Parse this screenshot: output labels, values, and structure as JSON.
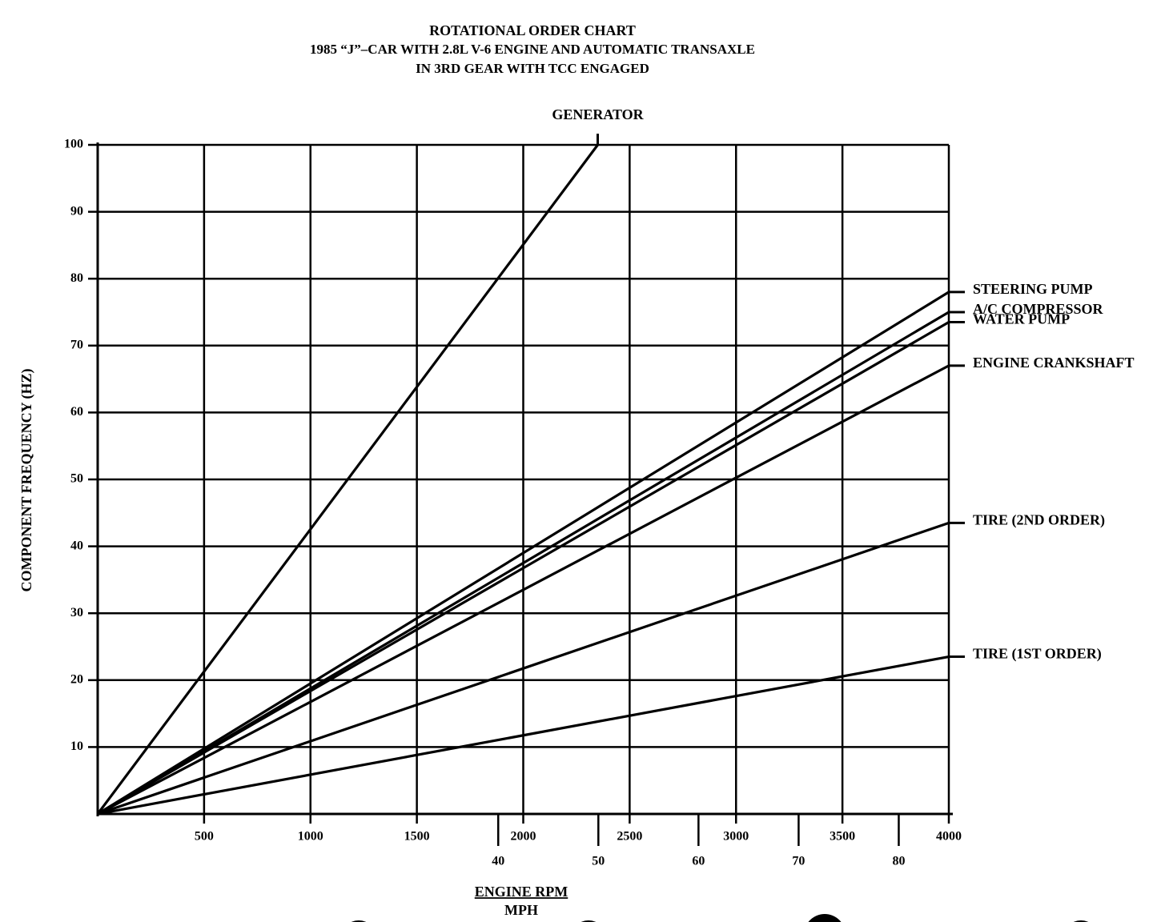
{
  "chart_data": {
    "type": "line",
    "title": "ROTATIONAL ORDER CHART",
    "subtitle": [
      "1985 “J”–CAR WITH 2.8L V-6 ENGINE AND AUTOMATIC TRANSAXLE",
      "IN 3RD GEAR WITH TCC ENGAGED"
    ],
    "ylabel": "COMPONENT FREQUENCY (HZ)",
    "xlabel": "ENGINE RPM",
    "x2label": "MPH",
    "xlim": [
      0,
      4000
    ],
    "xticks": [
      500,
      1000,
      1500,
      2000,
      2500,
      3000,
      3500,
      4000
    ],
    "x2lim": [
      0,
      85
    ],
    "x2ticks": [
      40,
      50,
      60,
      70,
      80
    ],
    "ylim": [
      0,
      100
    ],
    "yticks": [
      10,
      20,
      30,
      40,
      50,
      60,
      70,
      80,
      90,
      100
    ],
    "grid": true,
    "series": [
      {
        "name": "GENERATOR",
        "color": "#000000",
        "x": [
          0,
          2350
        ],
        "values": [
          0,
          100
        ]
      },
      {
        "name": "STEERING PUMP",
        "color": "#000000",
        "x": [
          0,
          4000
        ],
        "values": [
          0,
          78
        ]
      },
      {
        "name": "A/C COMPRESSOR",
        "color": "#000000",
        "x": [
          0,
          4000
        ],
        "values": [
          0,
          75
        ]
      },
      {
        "name": "WATER PUMP",
        "color": "#000000",
        "x": [
          0,
          4000
        ],
        "values": [
          0,
          73.5
        ]
      },
      {
        "name": "ENGINE CRANKSHAFT",
        "color": "#000000",
        "x": [
          0,
          4000
        ],
        "values": [
          0,
          67
        ]
      },
      {
        "name": "TIRE (2ND ORDER)",
        "color": "#000000",
        "x": [
          0,
          4000
        ],
        "values": [
          0,
          43.5
        ]
      },
      {
        "name": "TIRE (1ST ORDER)",
        "color": "#000000",
        "x": [
          0,
          4000
        ],
        "values": [
          0,
          23.5
        ]
      }
    ]
  }
}
